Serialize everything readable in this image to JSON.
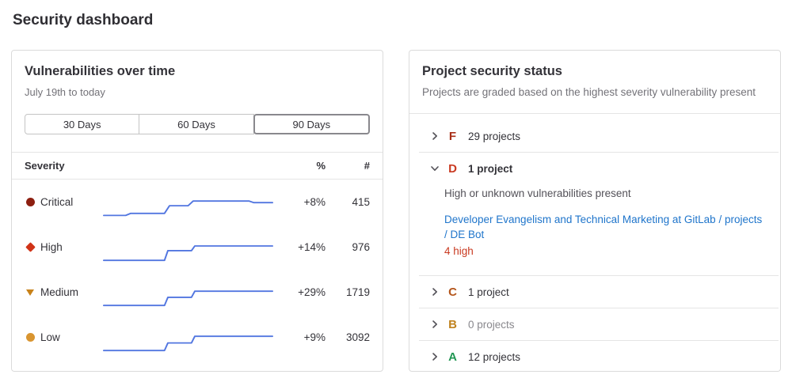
{
  "page": {
    "title": "Security dashboard"
  },
  "vulnerabilities_panel": {
    "title": "Vulnerabilities over time",
    "subtitle": "July 19th to today",
    "range_buttons": [
      {
        "label": "30 Days",
        "selected": false
      },
      {
        "label": "60 Days",
        "selected": false
      },
      {
        "label": "90 Days",
        "selected": true
      }
    ],
    "table_headers": {
      "severity": "Severity",
      "percent": "%",
      "count": "#"
    },
    "spark_color": "#5276e0",
    "rows": [
      {
        "severity": "Critical",
        "icon": "severity-critical-icon",
        "color": "#8d1f10",
        "percent": "+8%",
        "count": "415",
        "spark": [
          [
            0,
            96
          ],
          [
            13,
            96
          ],
          [
            16,
            83
          ],
          [
            36,
            83
          ],
          [
            39,
            36
          ],
          [
            50,
            36
          ],
          [
            53,
            7
          ],
          [
            86,
            7
          ],
          [
            89,
            17
          ],
          [
            100,
            17
          ]
        ]
      },
      {
        "severity": "High",
        "icon": "severity-high-icon",
        "color": "#d03317",
        "percent": "+14%",
        "count": "976",
        "spark": [
          [
            0,
            95
          ],
          [
            36,
            95
          ],
          [
            38,
            35
          ],
          [
            52,
            35
          ],
          [
            54,
            6
          ],
          [
            100,
            6
          ]
        ]
      },
      {
        "severity": "Medium",
        "icon": "severity-medium-icon",
        "color": "#c8821a",
        "percent": "+29%",
        "count": "1719",
        "spark": [
          [
            0,
            95
          ],
          [
            36,
            95
          ],
          [
            38,
            45
          ],
          [
            52,
            45
          ],
          [
            54,
            7
          ],
          [
            100,
            7
          ]
        ]
      },
      {
        "severity": "Low",
        "icon": "severity-low-icon",
        "color": "#d99530",
        "percent": "+9%",
        "count": "3092",
        "spark": [
          [
            0,
            95
          ],
          [
            36,
            95
          ],
          [
            38,
            48
          ],
          [
            52,
            48
          ],
          [
            54,
            7
          ],
          [
            100,
            7
          ]
        ]
      }
    ]
  },
  "project_status_panel": {
    "title": "Project security status",
    "subtitle": "Projects are graded based on the highest severity vulnerability present",
    "link_color": "#1f75cb",
    "finding_color": "#c93a21",
    "grades": [
      {
        "letter": "F",
        "color": "#a82e17",
        "text": "29 projects",
        "expanded": false
      },
      {
        "letter": "D",
        "color": "#c93a21",
        "text": "1 project",
        "expanded": true,
        "description": "High or unknown vulnerabilities present",
        "project_link": "Developer Evangelism and Technical Marketing at GitLab / projects / DE Bot",
        "finding": "4 high"
      },
      {
        "letter": "C",
        "color": "#b4561c",
        "text": "1 project",
        "expanded": false
      },
      {
        "letter": "B",
        "color": "#c0831f",
        "text": "0 projects",
        "expanded": false
      },
      {
        "letter": "A",
        "color": "#219653",
        "text": "12 projects",
        "expanded": false
      }
    ]
  }
}
